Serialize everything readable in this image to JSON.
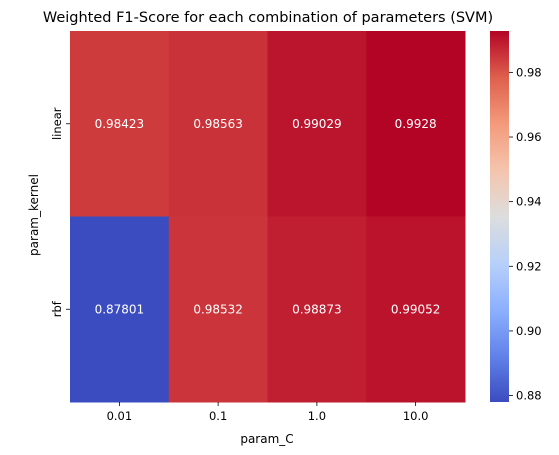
{
  "chart_data": {
    "type": "heatmap",
    "title": "Weighted F1-Score for each combination of parameters (SVM)",
    "xlabel": "param_C",
    "ylabel": "param_kernel",
    "x_categories": [
      "0.01",
      "0.1",
      "1.0",
      "10.0"
    ],
    "y_categories": [
      "linear",
      "rbf"
    ],
    "values": [
      [
        0.98423,
        0.98563,
        0.99029,
        0.9928
      ],
      [
        0.87801,
        0.98532,
        0.98873,
        0.99052
      ]
    ],
    "cell_labels": [
      [
        "0.98423",
        "0.98563",
        "0.99029",
        "0.9928"
      ],
      [
        "0.87801",
        "0.98532",
        "0.98873",
        "0.99052"
      ]
    ],
    "colormap": "coolwarm",
    "colorbar": {
      "vmin": 0.87801,
      "vmax": 0.9928,
      "ticks": [
        0.88,
        0.9,
        0.92,
        0.94,
        0.96,
        0.98
      ],
      "tick_labels": [
        "0.88",
        "0.90",
        "0.92",
        "0.94",
        "0.96",
        "0.98"
      ]
    }
  }
}
